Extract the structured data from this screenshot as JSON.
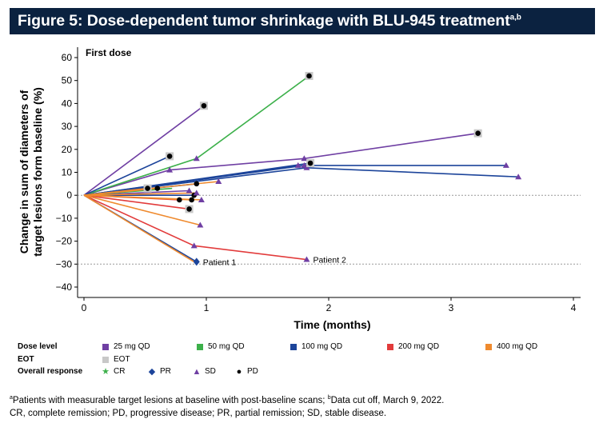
{
  "figure_title": "Figure 5: Dose-dependent tumor shrinkage with BLU-945 treatment",
  "figure_title_superscript": "a,b",
  "chart_data": {
    "type": "line",
    "title": "Figure 5: Dose-dependent tumor shrinkage with BLU-945 treatment",
    "panel_label": "First dose",
    "xlabel": "Time (months)",
    "ylabel_line1": "Change in sum of diameters of",
    "ylabel_line2": "target lesions form baseline (%)",
    "xlim": [
      0,
      4
    ],
    "ylim": [
      -40,
      60
    ],
    "xticks": [
      "0",
      "1",
      "2",
      "3",
      "4"
    ],
    "yticks": [
      "60",
      "50",
      "40",
      "30",
      "20",
      "10",
      "0",
      "−10",
      "−20",
      "−30",
      "−40"
    ],
    "reference_lines": [
      0,
      -30
    ],
    "dose_colors": {
      "25 mg QD": "#6f3fa3",
      "50 mg QD": "#3cb04a",
      "100 mg QD": "#1c449a",
      "200 mg QD": "#e23b3b",
      "400 mg QD": "#ef8a2e"
    },
    "series": [
      {
        "dose": "25 mg QD",
        "x": [
          0,
          0.98
        ],
        "y": [
          0,
          39
        ],
        "end": "PD",
        "eot": true
      },
      {
        "dose": "25 mg QD",
        "x": [
          0,
          0.7,
          1.8,
          3.22
        ],
        "y": [
          0,
          11,
          16,
          27
        ],
        "end": "PD",
        "eot": true
      },
      {
        "dose": "25 mg QD",
        "x": [
          0,
          0.86
        ],
        "y": [
          0,
          2
        ],
        "end": "SD",
        "eot": false
      },
      {
        "dose": "50 mg QD",
        "x": [
          0,
          0.92,
          1.84
        ],
        "y": [
          0,
          16,
          52
        ],
        "end": "PD",
        "eot": true
      },
      {
        "dose": "50 mg QD",
        "x": [
          0,
          0.72
        ],
        "y": [
          0,
          3
        ],
        "end": "none",
        "eot": false
      },
      {
        "dose": "100 mg QD",
        "x": [
          0,
          0.7
        ],
        "y": [
          0,
          17
        ],
        "end": "PD",
        "eot": true
      },
      {
        "dose": "100 mg QD",
        "x": [
          0,
          1.8,
          3.45
        ],
        "y": [
          0,
          13,
          13
        ],
        "end": "SD",
        "eot": false
      },
      {
        "dose": "100 mg QD",
        "x": [
          0,
          1.82,
          3.55
        ],
        "y": [
          0,
          12,
          8
        ],
        "end": "SD",
        "eot": false
      },
      {
        "dose": "100 mg QD",
        "x": [
          0,
          1.75
        ],
        "y": [
          0,
          13
        ],
        "end": "SD",
        "eot": false
      },
      {
        "dose": "100 mg QD",
        "x": [
          0,
          1.85
        ],
        "y": [
          0,
          14
        ],
        "end": "PD",
        "eot": true
      },
      {
        "dose": "100 mg QD",
        "x": [
          0,
          0.92
        ],
        "y": [
          0,
          5
        ],
        "end": "PD",
        "eot": false
      },
      {
        "dose": "100 mg QD",
        "x": [
          0,
          0.9
        ],
        "y": [
          0,
          0
        ],
        "end": "PD",
        "eot": false
      },
      {
        "dose": "100 mg QD",
        "x": [
          0,
          0.92
        ],
        "y": [
          0,
          -29
        ],
        "end": "PR",
        "eot": false,
        "label": "Patient 1"
      },
      {
        "dose": "200 mg QD",
        "x": [
          0,
          0.9,
          1.82
        ],
        "y": [
          0,
          -22,
          -28
        ],
        "end": "SD",
        "eot": false,
        "label": "Patient 2"
      },
      {
        "dose": "200 mg QD",
        "x": [
          0,
          0.78
        ],
        "y": [
          0,
          -2
        ],
        "end": "PD",
        "eot": false
      },
      {
        "dose": "200 mg QD",
        "x": [
          0,
          0.86
        ],
        "y": [
          0,
          -6
        ],
        "end": "PD",
        "eot": true
      },
      {
        "dose": "400 mg QD",
        "x": [
          0,
          0.9
        ],
        "y": [
          0,
          -29
        ],
        "end": "none",
        "eot": false
      },
      {
        "dose": "400 mg QD",
        "x": [
          0,
          0.95
        ],
        "y": [
          0,
          -13
        ],
        "end": "SD",
        "eot": false
      },
      {
        "dose": "400 mg QD",
        "x": [
          0,
          0.96
        ],
        "y": [
          0,
          -2
        ],
        "end": "SD",
        "eot": false
      },
      {
        "dose": "400 mg QD",
        "x": [
          0,
          0.88
        ],
        "y": [
          0,
          -2
        ],
        "end": "PD",
        "eot": false
      },
      {
        "dose": "400 mg QD",
        "x": [
          0,
          0.6
        ],
        "y": [
          0,
          3
        ],
        "end": "PD",
        "eot": false
      },
      {
        "dose": "400 mg QD",
        "x": [
          0,
          0.52
        ],
        "y": [
          0,
          3
        ],
        "end": "PD",
        "eot": true
      },
      {
        "dose": "400 mg QD",
        "x": [
          0,
          0.92
        ],
        "y": [
          0,
          1
        ],
        "end": "SD",
        "eot": false
      },
      {
        "dose": "400 mg QD",
        "x": [
          0,
          1.1
        ],
        "y": [
          0,
          6
        ],
        "end": "SD",
        "eot": false
      }
    ]
  },
  "legend": {
    "dose_level_label": "Dose level",
    "dose_items": [
      "25 mg QD",
      "50 mg QD",
      "100 mg QD",
      "200 mg QD",
      "400 mg QD"
    ],
    "eot_label": "EOT",
    "eot_item": "EOT",
    "eot_color": "#c8c8c8",
    "response_label": "Overall response",
    "response_items": [
      {
        "label": "CR",
        "symbol": "★",
        "color": "#3cb04a"
      },
      {
        "label": "PR",
        "symbol": "◆",
        "color": "#1c449a"
      },
      {
        "label": "SD",
        "symbol": "▲",
        "color": "#6f3fa3"
      },
      {
        "label": "PD",
        "symbol": "●",
        "color": "#000000"
      }
    ]
  },
  "footnote": {
    "line1_sup_a": "a",
    "line1_part1": "Patients with measurable target lesions at baseline with post-baseline scans; ",
    "line1_sup_b": "b",
    "line1_part2": "Data cut off, March 9, 2022.",
    "line2": "CR, complete remission; PD, progressive disease; PR, partial remission; SD, stable disease."
  }
}
